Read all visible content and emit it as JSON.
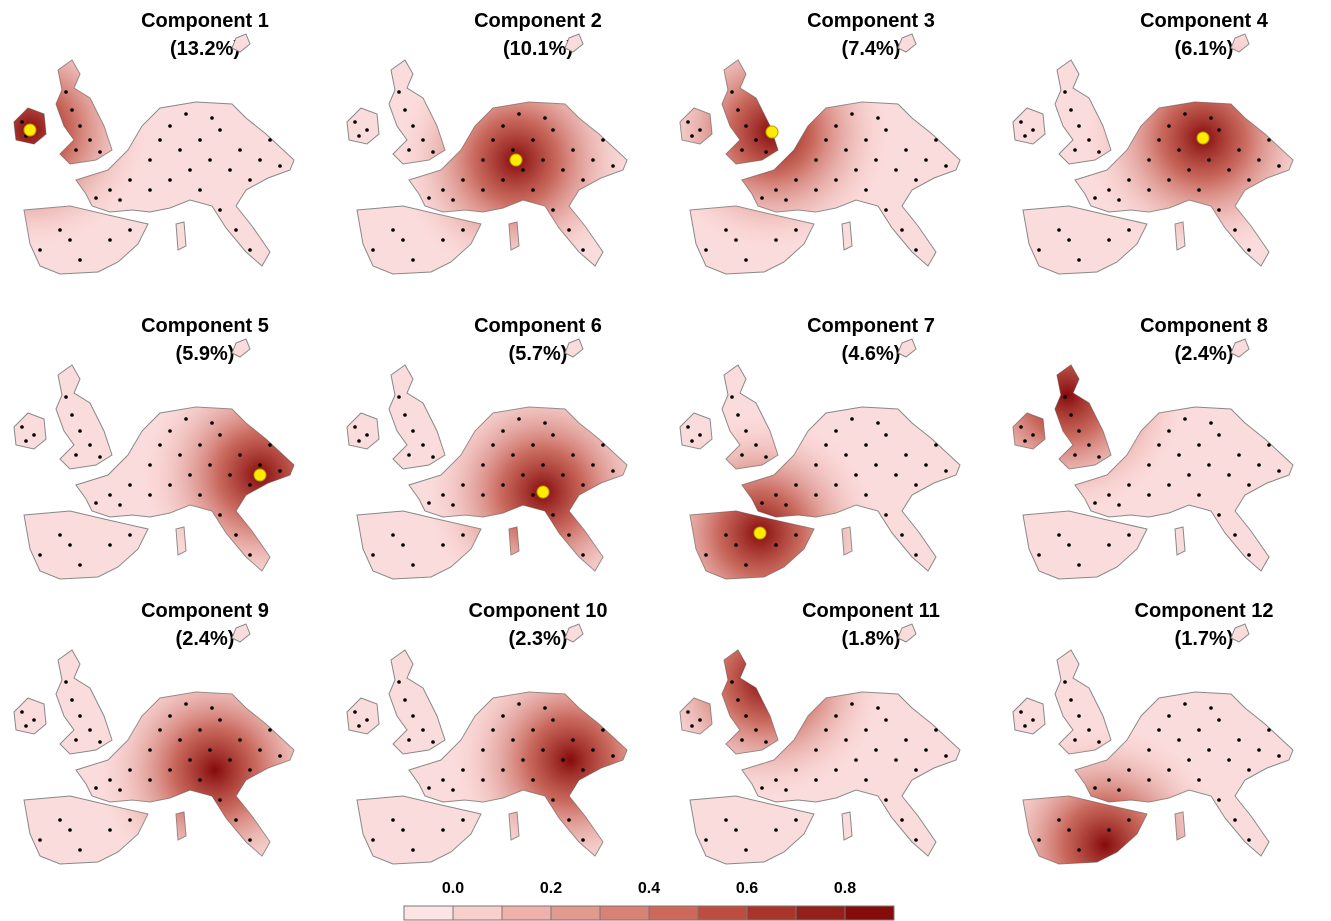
{
  "panels": [
    {
      "title": "Component 1",
      "variance": "(13.2%)"
    },
    {
      "title": "Component 2",
      "variance": "(10.1%)"
    },
    {
      "title": "Component 3",
      "variance": "(7.4%)"
    },
    {
      "title": "Component 4",
      "variance": "(6.1%)"
    },
    {
      "title": "Component 5",
      "variance": "(5.9%)"
    },
    {
      "title": "Component 6",
      "variance": "(5.7%)"
    },
    {
      "title": "Component 7",
      "variance": "(4.6%)"
    },
    {
      "title": "Component 8",
      "variance": "(2.4%)"
    },
    {
      "title": "Component 9",
      "variance": "(2.4%)"
    },
    {
      "title": "Component 10",
      "variance": "(2.3%)"
    },
    {
      "title": "Component 11",
      "variance": "(1.8%)"
    },
    {
      "title": "Component 12",
      "variance": "(1.7%)"
    }
  ],
  "legend": {
    "range": [
      -0.1,
      0.9
    ],
    "ticks": [
      {
        "value": 0,
        "label": "0.0"
      },
      0.2,
      0.4,
      0.6,
      0.8
    ],
    "colors": [
      "#fde4e4",
      "#f8cfcb",
      "#efb2aa",
      "#e39a8e",
      "#d98174",
      "#cd685a",
      "#bd4d3f",
      "#a9342a",
      "#951f1a",
      "#860b0b"
    ]
  }
}
